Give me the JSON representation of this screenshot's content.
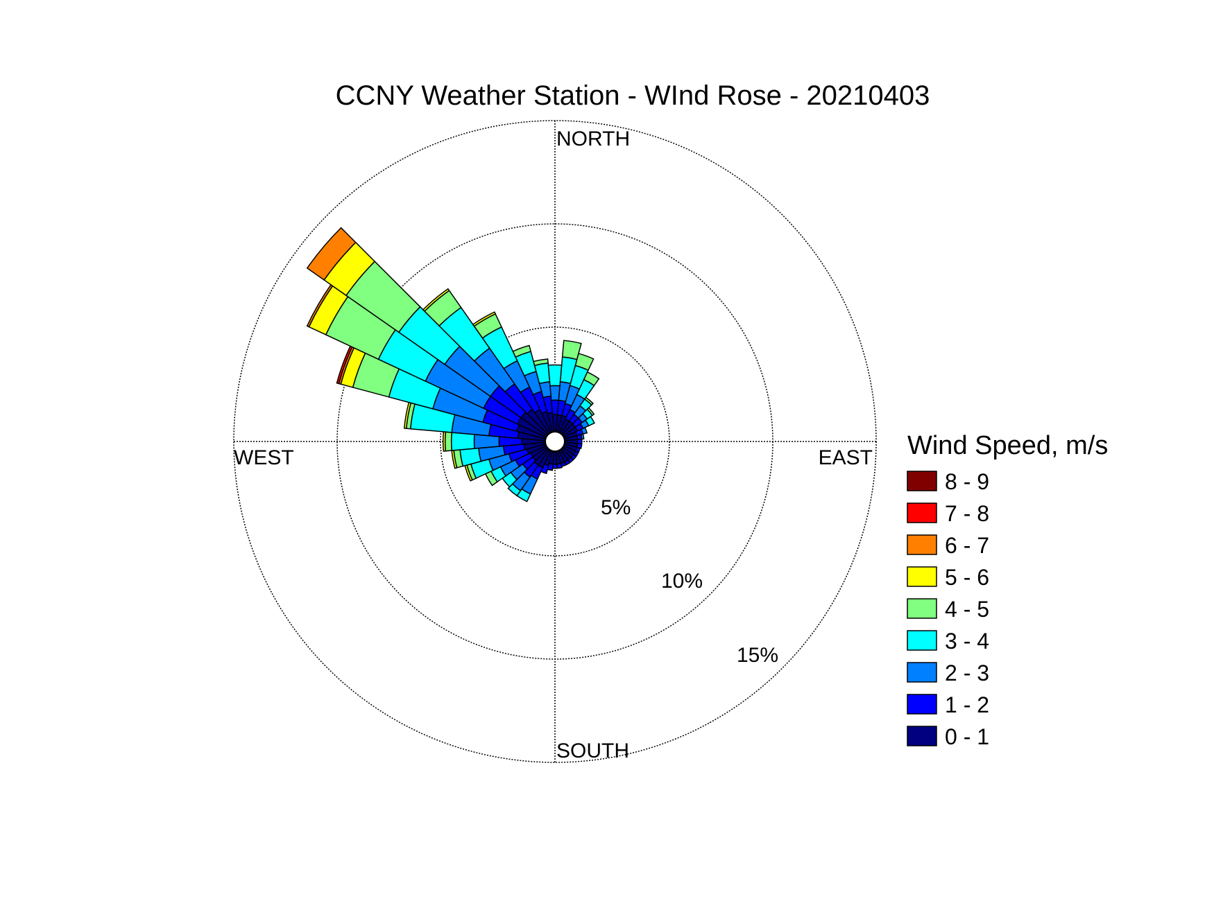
{
  "chart_data": {
    "type": "wind-rose",
    "title": "CCNY Weather Station - WInd Rose - 20210403",
    "direction_labels": {
      "north": "NORTH",
      "south": "SOUTH",
      "east": "EAST",
      "west": "WEST"
    },
    "rings": [
      {
        "value": 5,
        "label": "5%"
      },
      {
        "value": 10,
        "label": "10%"
      },
      {
        "value": 15,
        "label": "15%"
      }
    ],
    "r_max_percent": 15,
    "bin_width_deg": 10,
    "center_offset_percent": 0.5,
    "legend_title": "Wind Speed, m/s",
    "legend_position": "right",
    "speed_bins": [
      {
        "label": "8 - 9",
        "color": "#800000"
      },
      {
        "label": "7 - 8",
        "color": "#ff0000"
      },
      {
        "label": "6 - 7",
        "color": "#ff8000"
      },
      {
        "label": "5 - 6",
        "color": "#ffff00"
      },
      {
        "label": "4 - 5",
        "color": "#80ff80"
      },
      {
        "label": "3 - 4",
        "color": "#00ffff"
      },
      {
        "label": "2 - 3",
        "color": "#0080ff"
      },
      {
        "label": "1 - 2",
        "color": "#0000ff"
      },
      {
        "label": "0 - 1",
        "color": "#000080"
      }
    ],
    "bins_order_note": "cumulative percent boundaries listed from 0-1 bin outward",
    "directions": [
      {
        "dir": 10,
        "cum": [
          0.8,
          1.5,
          2.4,
          3.6,
          4.4
        ]
      },
      {
        "dir": 20,
        "cum": [
          0.8,
          1.4,
          2.3,
          3.3,
          3.9
        ]
      },
      {
        "dir": 30,
        "cum": [
          0.7,
          1.2,
          2.0,
          2.8,
          3.2
        ]
      },
      {
        "dir": 40,
        "cum": [
          0.7,
          1.1,
          1.6,
          2.0,
          2.1
        ]
      },
      {
        "dir": 50,
        "cum": [
          0.7,
          1.1,
          1.4,
          1.7,
          1.8
        ]
      },
      {
        "dir": 60,
        "cum": [
          0.7,
          1.0,
          1.3,
          1.6
        ]
      },
      {
        "dir": 70,
        "cum": [
          0.6,
          0.9,
          1.1
        ]
      },
      {
        "dir": 80,
        "cum": [
          0.6,
          0.8,
          0.9
        ]
      },
      {
        "dir": 90,
        "cum": [
          0.6,
          0.8
        ]
      },
      {
        "dir": 100,
        "cum": [
          0.6,
          0.8
        ]
      },
      {
        "dir": 110,
        "cum": [
          0.6,
          0.75
        ]
      },
      {
        "dir": 120,
        "cum": [
          0.6,
          0.75
        ]
      },
      {
        "dir": 130,
        "cum": [
          0.6,
          0.75
        ]
      },
      {
        "dir": 140,
        "cum": [
          0.6,
          0.75
        ]
      },
      {
        "dir": 150,
        "cum": [
          0.6,
          0.75
        ]
      },
      {
        "dir": 160,
        "cum": [
          0.6,
          0.75
        ]
      },
      {
        "dir": 170,
        "cum": [
          0.6,
          0.8
        ]
      },
      {
        "dir": 180,
        "cum": [
          0.6,
          0.8
        ]
      },
      {
        "dir": 190,
        "cum": [
          0.6,
          0.9
        ]
      },
      {
        "dir": 200,
        "cum": [
          0.7,
          1.1
        ]
      },
      {
        "dir": 210,
        "cum": [
          0.9,
          1.5,
          2.3,
          2.7
        ]
      },
      {
        "dir": 220,
        "cum": [
          0.9,
          1.6,
          2.4,
          2.7
        ]
      },
      {
        "dir": 230,
        "cum": [
          0.8,
          1.4,
          2.1,
          2.6
        ]
      },
      {
        "dir": 240,
        "cum": [
          0.8,
          1.6,
          2.4,
          2.9,
          3.2
        ]
      },
      {
        "dir": 250,
        "cum": [
          0.9,
          1.8,
          2.8,
          3.7,
          3.9,
          4.0
        ]
      },
      {
        "dir": 260,
        "cum": [
          1.0,
          2.0,
          3.2,
          4.1,
          4.4,
          4.5
        ]
      },
      {
        "dir": 270,
        "cum": [
          1.1,
          2.2,
          3.4,
          4.5,
          4.8,
          4.9
        ]
      },
      {
        "dir": 280,
        "cum": [
          1.3,
          2.7,
          4.5,
          6.5,
          6.7,
          6.8
        ]
      },
      {
        "dir": 290,
        "cum": [
          1.4,
          3.1,
          5.6,
          7.8,
          9.6,
          10.2,
          10.3,
          10.4
        ]
      },
      {
        "dir": 300,
        "cum": [
          1.5,
          3.3,
          6.4,
          8.9,
          11.7,
          12.6,
          12.7
        ]
      },
      {
        "dir": 310,
        "cum": [
          1.5,
          3.3,
          6.0,
          8.7,
          11.8,
          13.1,
          14.1
        ]
      },
      {
        "dir": 320,
        "cum": [
          1.4,
          2.9,
          5.0,
          7.4,
          8.4,
          8.5
        ]
      },
      {
        "dir": 330,
        "cum": [
          1.2,
          2.4,
          3.8,
          5.6,
          6.3,
          6.4
        ]
      },
      {
        "dir": 340,
        "cum": [
          1.0,
          2.0,
          3.0,
          4.0,
          4.3
        ]
      },
      {
        "dir": 350,
        "cum": [
          0.9,
          1.7,
          2.4,
          3.3,
          3.5
        ]
      },
      {
        "dir": 360,
        "cum": [
          0.8,
          1.5,
          2.2,
          3.2
        ]
      }
    ]
  }
}
